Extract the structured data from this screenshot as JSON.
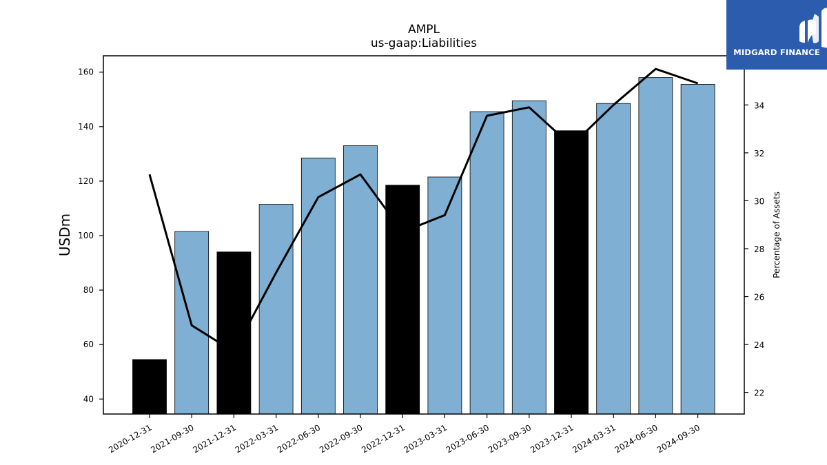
{
  "chart_data": {
    "type": "bar",
    "title": "AMPL",
    "subtitle": "us-gaap:Liabilities",
    "ylabel": "USDm",
    "y2label": "Percentage of Assets",
    "categories": [
      "2020-12-31",
      "2021-09-30",
      "2021-12-31",
      "2022-03-31",
      "2022-06-30",
      "2022-09-30",
      "2022-12-31",
      "2023-03-31",
      "2023-06-30",
      "2023-09-30",
      "2023-12-31",
      "2024-03-31",
      "2024-06-30",
      "2024-09-30"
    ],
    "series": [
      {
        "type": "bar",
        "values": [
          54.5,
          101.5,
          94.0,
          111.5,
          128.5,
          133.0,
          118.5,
          121.5,
          145.5,
          149.5,
          138.5,
          148.5,
          158.0,
          155.5
        ],
        "colors": [
          "#000000",
          "#7fb0d4",
          "#000000",
          "#7fb0d4",
          "#7fb0d4",
          "#7fb0d4",
          "#000000",
          "#7fb0d4",
          "#7fb0d4",
          "#7fb0d4",
          "#000000",
          "#7fb0d4",
          "#7fb0d4",
          "#7fb0d4"
        ]
      },
      {
        "type": "line",
        "axis": "right",
        "values": [
          31.1,
          24.8,
          23.7,
          27.0,
          30.15,
          31.1,
          28.7,
          29.4,
          33.55,
          33.9,
          32.3,
          34.0,
          35.5,
          34.9
        ],
        "color": "#000000"
      }
    ],
    "ylim": [
      34.5,
      166
    ],
    "yticks": [
      40,
      60,
      80,
      100,
      120,
      140,
      160
    ],
    "y2lim": [
      21.1,
      36.05
    ],
    "y2ticks": [
      22,
      24,
      26,
      28,
      30,
      32,
      34
    ],
    "grid": false
  },
  "logo": {
    "text": "MIDGARD FINANCE",
    "background": "#2b5cad",
    "icon": "midgard-logo-icon"
  }
}
